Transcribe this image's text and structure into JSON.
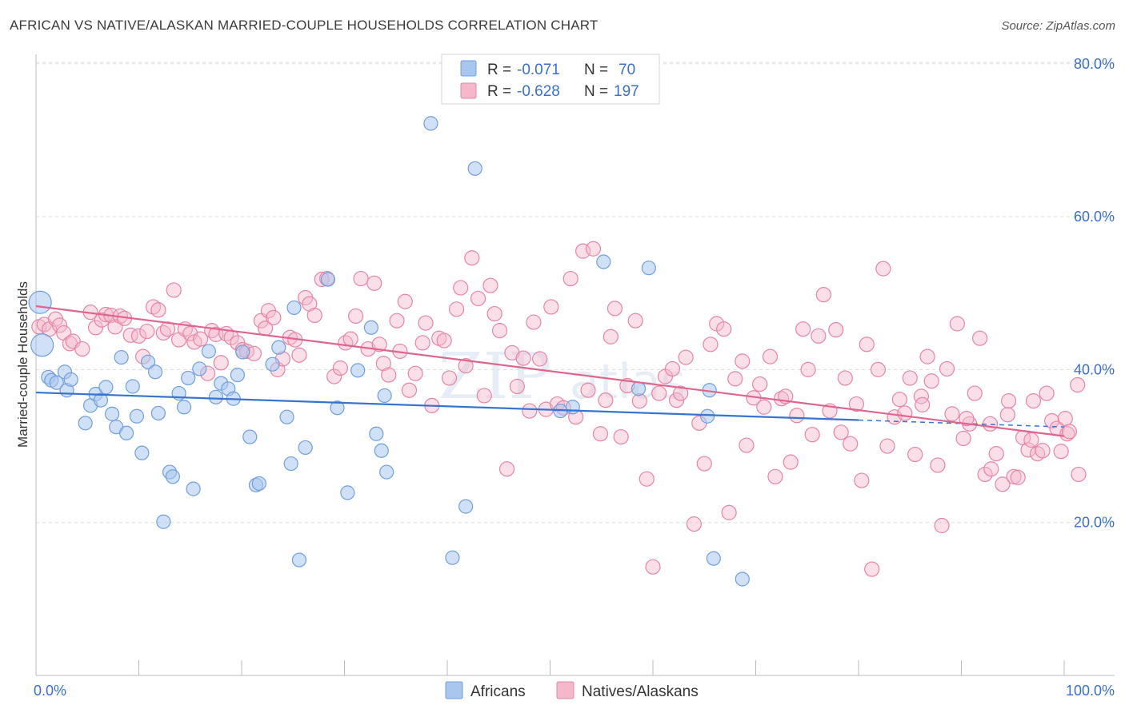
{
  "header": {
    "title": "AFRICAN VS NATIVE/ALASKAN MARRIED-COUPLE HOUSEHOLDS CORRELATION CHART",
    "source": "Source: ZipAtlas.com"
  },
  "legend": {
    "africans": {
      "r_label": "R =",
      "r_value": "-0.071",
      "n_label": "N =",
      "n_value": "70"
    },
    "natives": {
      "r_label": "R =",
      "r_value": "-0.628",
      "n_label": "N =",
      "n_value": "197"
    }
  },
  "bottom_legend": {
    "africans": "Africans",
    "natives": "Natives/Alaskans"
  },
  "watermark": {
    "zip": "ZIP",
    "atlas": "atlas"
  },
  "colors": {
    "africans_fill": "#a9c7ee",
    "africans_stroke": "#6f9fdc",
    "africans_line": "#3674cf",
    "natives_fill": "#f5b8cb",
    "natives_stroke": "#e884a4",
    "natives_line": "#e0658d",
    "tick_text": "#3a6fd0"
  },
  "chart_data": {
    "type": "scatter",
    "title": "AFRICAN VS NATIVE/ALASKAN MARRIED-COUPLE HOUSEHOLDS CORRELATION CHART",
    "xlabel": "",
    "ylabel": "Married-couple Households",
    "xlim": [
      0,
      100
    ],
    "ylim": [
      0,
      85
    ],
    "x_tick_labels": [
      "0.0%",
      "100.0%"
    ],
    "y_tick_labels": [
      "20.0%",
      "40.0%",
      "60.0%",
      "80.0%"
    ],
    "y_ticks": [
      20,
      40,
      60,
      80
    ],
    "grid": true,
    "legend_position": "top-center",
    "series": [
      {
        "name": "Africans",
        "trend": {
          "x0": 0,
          "y0": 37.0,
          "x1": 100,
          "y1": 32.5,
          "solid_until": 80
        },
        "points": [
          [
            0.4,
            48.8
          ],
          [
            0.6,
            43.2
          ],
          [
            1.2,
            39.0
          ],
          [
            1.5,
            38.6
          ],
          [
            2.0,
            38.3
          ],
          [
            2.8,
            39.7
          ],
          [
            3.0,
            37.3
          ],
          [
            3.4,
            38.7
          ],
          [
            4.8,
            33.0
          ],
          [
            5.3,
            35.3
          ],
          [
            5.8,
            36.8
          ],
          [
            6.3,
            36.0
          ],
          [
            6.8,
            37.7
          ],
          [
            7.4,
            34.2
          ],
          [
            7.8,
            32.5
          ],
          [
            8.3,
            41.6
          ],
          [
            8.8,
            31.7
          ],
          [
            9.4,
            37.8
          ],
          [
            9.8,
            33.9
          ],
          [
            10.3,
            29.1
          ],
          [
            10.9,
            41.0
          ],
          [
            11.6,
            39.7
          ],
          [
            11.9,
            34.3
          ],
          [
            12.4,
            20.1
          ],
          [
            13.0,
            26.6
          ],
          [
            13.3,
            26.0
          ],
          [
            13.9,
            36.9
          ],
          [
            14.4,
            35.1
          ],
          [
            14.8,
            38.9
          ],
          [
            15.3,
            24.4
          ],
          [
            15.9,
            40.1
          ],
          [
            16.8,
            42.4
          ],
          [
            17.5,
            36.4
          ],
          [
            18.0,
            38.2
          ],
          [
            18.7,
            37.5
          ],
          [
            19.2,
            36.2
          ],
          [
            19.6,
            39.3
          ],
          [
            20.1,
            42.3
          ],
          [
            20.8,
            31.2
          ],
          [
            21.4,
            24.9
          ],
          [
            21.7,
            25.1
          ],
          [
            23.0,
            40.7
          ],
          [
            23.6,
            42.9
          ],
          [
            24.4,
            33.8
          ],
          [
            24.8,
            27.7
          ],
          [
            25.1,
            48.1
          ],
          [
            25.6,
            15.1
          ],
          [
            26.2,
            29.8
          ],
          [
            28.4,
            51.8
          ],
          [
            29.3,
            35.0
          ],
          [
            30.3,
            23.9
          ],
          [
            31.3,
            39.9
          ],
          [
            32.6,
            45.5
          ],
          [
            33.1,
            31.6
          ],
          [
            33.6,
            29.4
          ],
          [
            33.9,
            36.6
          ],
          [
            34.1,
            26.6
          ],
          [
            38.4,
            72.2
          ],
          [
            40.5,
            15.4
          ],
          [
            41.8,
            22.1
          ],
          [
            42.7,
            66.3
          ],
          [
            51.0,
            34.6
          ],
          [
            52.2,
            35.1
          ],
          [
            55.2,
            54.1
          ],
          [
            58.6,
            37.5
          ],
          [
            59.6,
            53.3
          ],
          [
            65.5,
            37.3
          ],
          [
            65.3,
            33.9
          ],
          [
            65.9,
            15.3
          ],
          [
            68.7,
            12.6
          ]
        ]
      },
      {
        "name": "Natives/Alaskans",
        "trend": {
          "x0": 0,
          "y0": 48.3,
          "x1": 100,
          "y1": 31.3,
          "solid_until": 100
        },
        "points": [
          [
            0.3,
            45.6
          ],
          [
            0.8,
            45.9
          ],
          [
            1.3,
            45.3
          ],
          [
            1.9,
            46.6
          ],
          [
            2.3,
            45.8
          ],
          [
            2.7,
            44.8
          ],
          [
            3.3,
            43.4
          ],
          [
            3.6,
            43.7
          ],
          [
            4.5,
            42.7
          ],
          [
            5.3,
            47.5
          ],
          [
            5.8,
            45.5
          ],
          [
            6.4,
            46.5
          ],
          [
            6.8,
            47.2
          ],
          [
            7.3,
            47.1
          ],
          [
            7.7,
            45.6
          ],
          [
            8.2,
            47.0
          ],
          [
            8.6,
            46.7
          ],
          [
            9.2,
            44.5
          ],
          [
            10.0,
            44.4
          ],
          [
            10.4,
            41.7
          ],
          [
            10.8,
            45.0
          ],
          [
            11.4,
            48.2
          ],
          [
            11.9,
            47.8
          ],
          [
            12.4,
            44.8
          ],
          [
            12.8,
            45.3
          ],
          [
            13.4,
            50.4
          ],
          [
            13.9,
            43.9
          ],
          [
            14.5,
            45.3
          ],
          [
            15.0,
            44.7
          ],
          [
            15.4,
            43.6
          ],
          [
            16.0,
            44.0
          ],
          [
            16.7,
            39.5
          ],
          [
            17.1,
            45.1
          ],
          [
            17.5,
            44.6
          ],
          [
            18.0,
            40.9
          ],
          [
            18.5,
            44.7
          ],
          [
            19.0,
            44.2
          ],
          [
            19.6,
            43.5
          ],
          [
            20.1,
            42.6
          ],
          [
            20.5,
            42.4
          ],
          [
            21.2,
            42.1
          ],
          [
            21.9,
            46.4
          ],
          [
            22.3,
            45.4
          ],
          [
            22.6,
            47.7
          ],
          [
            23.1,
            46.8
          ],
          [
            23.5,
            40.0
          ],
          [
            24.0,
            41.4
          ],
          [
            24.7,
            44.2
          ],
          [
            25.2,
            43.9
          ],
          [
            25.6,
            41.9
          ],
          [
            26.2,
            49.4
          ],
          [
            26.6,
            48.6
          ],
          [
            27.1,
            47.1
          ],
          [
            27.8,
            51.8
          ],
          [
            28.3,
            51.9
          ],
          [
            29.0,
            39.1
          ],
          [
            29.6,
            40.2
          ],
          [
            30.1,
            43.5
          ],
          [
            30.6,
            44.0
          ],
          [
            31.1,
            47.0
          ],
          [
            31.6,
            51.9
          ],
          [
            32.3,
            42.7
          ],
          [
            32.9,
            51.3
          ],
          [
            33.4,
            43.3
          ],
          [
            33.8,
            40.8
          ],
          [
            34.3,
            39.3
          ],
          [
            35.1,
            46.4
          ],
          [
            35.4,
            42.4
          ],
          [
            35.9,
            48.9
          ],
          [
            36.3,
            37.3
          ],
          [
            36.9,
            39.5
          ],
          [
            37.6,
            43.5
          ],
          [
            37.9,
            46.1
          ],
          [
            38.5,
            35.3
          ],
          [
            39.2,
            44.1
          ],
          [
            39.7,
            43.8
          ],
          [
            40.2,
            38.9
          ],
          [
            40.9,
            47.9
          ],
          [
            41.3,
            50.7
          ],
          [
            41.8,
            40.5
          ],
          [
            42.4,
            54.6
          ],
          [
            43.0,
            49.3
          ],
          [
            43.6,
            36.6
          ],
          [
            44.2,
            51.0
          ],
          [
            44.6,
            47.3
          ],
          [
            45.1,
            45.1
          ],
          [
            45.8,
            27.0
          ],
          [
            46.3,
            42.2
          ],
          [
            46.8,
            37.8
          ],
          [
            47.4,
            41.5
          ],
          [
            48.0,
            34.6
          ],
          [
            48.4,
            46.2
          ],
          [
            49.0,
            41.4
          ],
          [
            49.6,
            34.8
          ],
          [
            50.1,
            48.2
          ],
          [
            50.7,
            35.5
          ],
          [
            51.3,
            35.0
          ],
          [
            52.0,
            51.9
          ],
          [
            52.5,
            33.8
          ],
          [
            53.2,
            55.5
          ],
          [
            53.7,
            37.3
          ],
          [
            54.2,
            55.8
          ],
          [
            54.9,
            31.6
          ],
          [
            55.4,
            36.0
          ],
          [
            55.9,
            44.3
          ],
          [
            56.3,
            48.0
          ],
          [
            56.9,
            31.2
          ],
          [
            57.5,
            37.9
          ],
          [
            58.3,
            46.4
          ],
          [
            58.7,
            35.9
          ],
          [
            59.4,
            25.7
          ],
          [
            60.0,
            14.2
          ],
          [
            60.6,
            36.9
          ],
          [
            61.2,
            39.1
          ],
          [
            61.9,
            40.1
          ],
          [
            62.3,
            36.0
          ],
          [
            62.7,
            36.9
          ],
          [
            63.2,
            41.6
          ],
          [
            64.0,
            19.8
          ],
          [
            64.5,
            33.0
          ],
          [
            65.0,
            27.7
          ],
          [
            65.6,
            43.3
          ],
          [
            66.2,
            46.0
          ],
          [
            66.9,
            45.3
          ],
          [
            67.4,
            21.3
          ],
          [
            68.0,
            38.8
          ],
          [
            68.7,
            41.1
          ],
          [
            69.1,
            30.1
          ],
          [
            69.8,
            36.3
          ],
          [
            70.4,
            38.1
          ],
          [
            70.8,
            35.1
          ],
          [
            71.4,
            41.7
          ],
          [
            71.9,
            26.0
          ],
          [
            72.5,
            36.2
          ],
          [
            72.9,
            36.5
          ],
          [
            73.4,
            27.9
          ],
          [
            74.0,
            34.0
          ],
          [
            74.6,
            45.3
          ],
          [
            75.1,
            40.0
          ],
          [
            75.5,
            31.5
          ],
          [
            76.1,
            44.4
          ],
          [
            76.6,
            49.8
          ],
          [
            77.2,
            34.6
          ],
          [
            77.8,
            45.2
          ],
          [
            78.3,
            31.8
          ],
          [
            78.7,
            38.9
          ],
          [
            79.2,
            30.3
          ],
          [
            79.8,
            35.5
          ],
          [
            80.3,
            25.5
          ],
          [
            80.8,
            43.3
          ],
          [
            81.3,
            13.9
          ],
          [
            81.9,
            40.0
          ],
          [
            82.4,
            53.2
          ],
          [
            82.8,
            30.0
          ],
          [
            83.5,
            33.8
          ],
          [
            84.0,
            36.1
          ],
          [
            84.5,
            34.3
          ],
          [
            85.0,
            38.9
          ],
          [
            85.5,
            28.9
          ],
          [
            86.1,
            36.5
          ],
          [
            86.7,
            41.7
          ],
          [
            87.1,
            38.5
          ],
          [
            87.7,
            27.5
          ],
          [
            88.1,
            19.6
          ],
          [
            88.6,
            40.1
          ],
          [
            89.1,
            34.2
          ],
          [
            89.6,
            46.0
          ],
          [
            90.2,
            31.0
          ],
          [
            90.8,
            32.9
          ],
          [
            91.3,
            36.9
          ],
          [
            91.8,
            44.1
          ],
          [
            92.3,
            26.3
          ],
          [
            92.9,
            27.0
          ],
          [
            93.4,
            29.0
          ],
          [
            94.0,
            25.0
          ],
          [
            94.6,
            35.9
          ],
          [
            95.1,
            26.0
          ],
          [
            95.5,
            25.9
          ],
          [
            96.0,
            31.1
          ],
          [
            96.5,
            29.5
          ],
          [
            96.8,
            30.8
          ],
          [
            97.4,
            29.0
          ],
          [
            97.9,
            29.4
          ],
          [
            98.3,
            36.9
          ],
          [
            98.8,
            33.3
          ],
          [
            99.3,
            32.3
          ],
          [
            99.7,
            29.3
          ],
          [
            100.1,
            33.6
          ],
          [
            100.3,
            31.6
          ],
          [
            101.3,
            38.0
          ],
          [
            101.4,
            26.3
          ],
          [
            100.5,
            31.9
          ],
          [
            97.0,
            35.9
          ],
          [
            94.5,
            34.1
          ],
          [
            92.8,
            32.9
          ],
          [
            90.5,
            33.6
          ],
          [
            86.2,
            35.4
          ]
        ]
      }
    ]
  }
}
